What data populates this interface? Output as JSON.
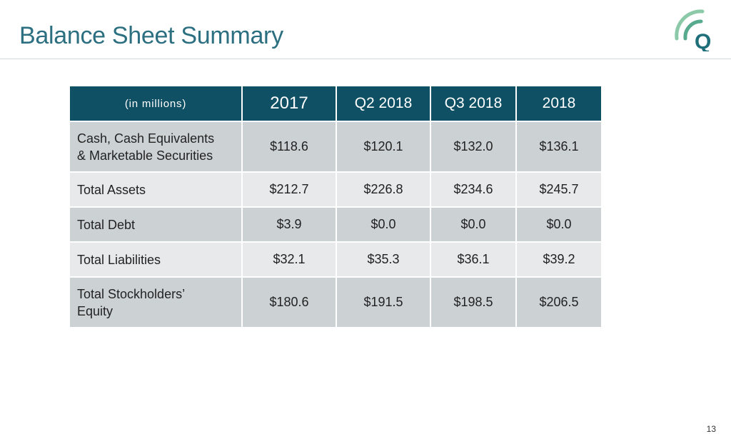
{
  "slide": {
    "title": "Balance Sheet Summary",
    "page_number": "13"
  },
  "table": {
    "unit_label": "(in millions)",
    "columns": [
      "2017",
      "Q2 2018",
      "Q3 2018",
      "2018"
    ],
    "rows": [
      {
        "label_lines": [
          "Cash, Cash Equivalents",
          "& Marketable Securities"
        ],
        "values": [
          "$118.6",
          "$120.1",
          "$132.0",
          "$136.1"
        ]
      },
      {
        "label_lines": [
          "Total Assets"
        ],
        "values": [
          "$212.7",
          "$226.8",
          "$234.6",
          "$245.7"
        ]
      },
      {
        "label_lines": [
          "Total Debt"
        ],
        "values": [
          "$3.9",
          "$0.0",
          "$0.0",
          "$0.0"
        ]
      },
      {
        "label_lines": [
          "Total Liabilities"
        ],
        "values": [
          "$32.1",
          "$35.3",
          "$36.1",
          "$39.2"
        ]
      },
      {
        "label_lines": [
          "Total Stockholders’",
          "Equity"
        ],
        "values": [
          "$180.6",
          "$191.5",
          "$198.5",
          "$206.5"
        ]
      }
    ]
  },
  "colors": {
    "title": "#2b6f80",
    "header_bg": "#0f5065",
    "row_dark": "#ccd2d4",
    "row_light": "#e7e9ea",
    "logo_arc_light": "#8cc9a8",
    "logo_arc_mid": "#58aa8f",
    "logo_letter": "#1e6f79"
  },
  "logo": {
    "icon": "q-signal-logo-icon",
    "letter": "Q"
  }
}
